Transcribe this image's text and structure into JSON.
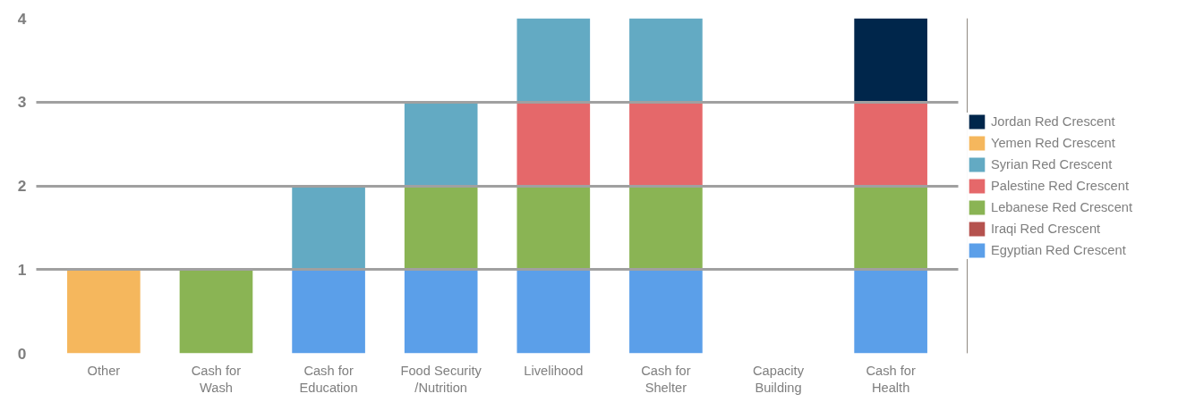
{
  "chart_data": {
    "type": "bar",
    "stacked": true,
    "categories": [
      "Other",
      "Cash for Wash",
      "Cash for Education",
      "Food Security /Nutrition",
      "Livelihood",
      "Cash for Shelter",
      "Capacity Building",
      "Cash for Health"
    ],
    "series": [
      {
        "name": "Egyptian Red Crescent",
        "color": "#5b9fe9",
        "values": [
          0,
          0,
          1,
          1,
          1,
          1,
          0,
          1
        ]
      },
      {
        "name": "Iraqi Red Crescent",
        "color": "#b5524e",
        "values": [
          0,
          0,
          0,
          0,
          0,
          0,
          0,
          0
        ]
      },
      {
        "name": "Lebanese Red Crescent",
        "color": "#8ab454",
        "values": [
          0,
          1,
          0,
          1,
          1,
          1,
          0,
          1
        ]
      },
      {
        "name": "Palestine Red Crescent",
        "color": "#e5686a",
        "values": [
          0,
          0,
          0,
          0,
          1,
          1,
          0,
          1
        ]
      },
      {
        "name": "Syrian Red Crescent",
        "color": "#63aac3",
        "values": [
          0,
          0,
          1,
          1,
          1,
          1,
          0,
          0
        ]
      },
      {
        "name": "Yemen Red Crescent",
        "color": "#f5b75d",
        "values": [
          1,
          0,
          0,
          0,
          0,
          0,
          0,
          0
        ]
      },
      {
        "name": "Jordan Red Crescent",
        "color": "#00264b",
        "values": [
          0,
          0,
          0,
          0,
          0,
          0,
          0,
          1
        ]
      }
    ],
    "ylim": [
      0,
      4
    ],
    "yticks": [
      0,
      1,
      2,
      3,
      4
    ],
    "grid": "y",
    "legend": "right"
  }
}
